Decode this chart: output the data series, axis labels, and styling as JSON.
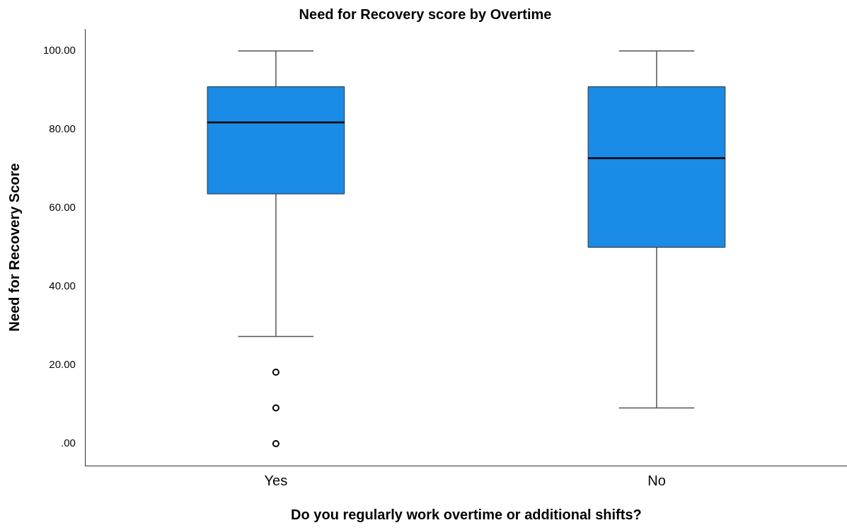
{
  "chart_data": {
    "type": "box",
    "title": "Need for Recovery score by Overtime",
    "xlabel": "Do you regularly work overtime or additional shifts?",
    "ylabel": "Need for Recovery Score",
    "categories": [
      "Yes",
      "No"
    ],
    "color": "#1a8be6",
    "boxes": [
      {
        "low": 27.3,
        "q1": 63.6,
        "median": 81.8,
        "q3": 90.9,
        "high": 100,
        "outliers": [
          18.2,
          9.1,
          0
        ]
      },
      {
        "low": 9.1,
        "q1": 50,
        "median": 72.7,
        "q3": 90.9,
        "high": 100
      }
    ],
    "ylim": [
      -5.6,
      105.6
    ],
    "yticks": [
      {
        "value": 0,
        "label": ".00"
      },
      {
        "value": 20,
        "label": "20.00"
      },
      {
        "value": 40,
        "label": "40.00"
      },
      {
        "value": 60,
        "label": "60.00"
      },
      {
        "value": 80,
        "label": "80.00"
      },
      {
        "value": 100,
        "label": "100.00"
      }
    ]
  }
}
